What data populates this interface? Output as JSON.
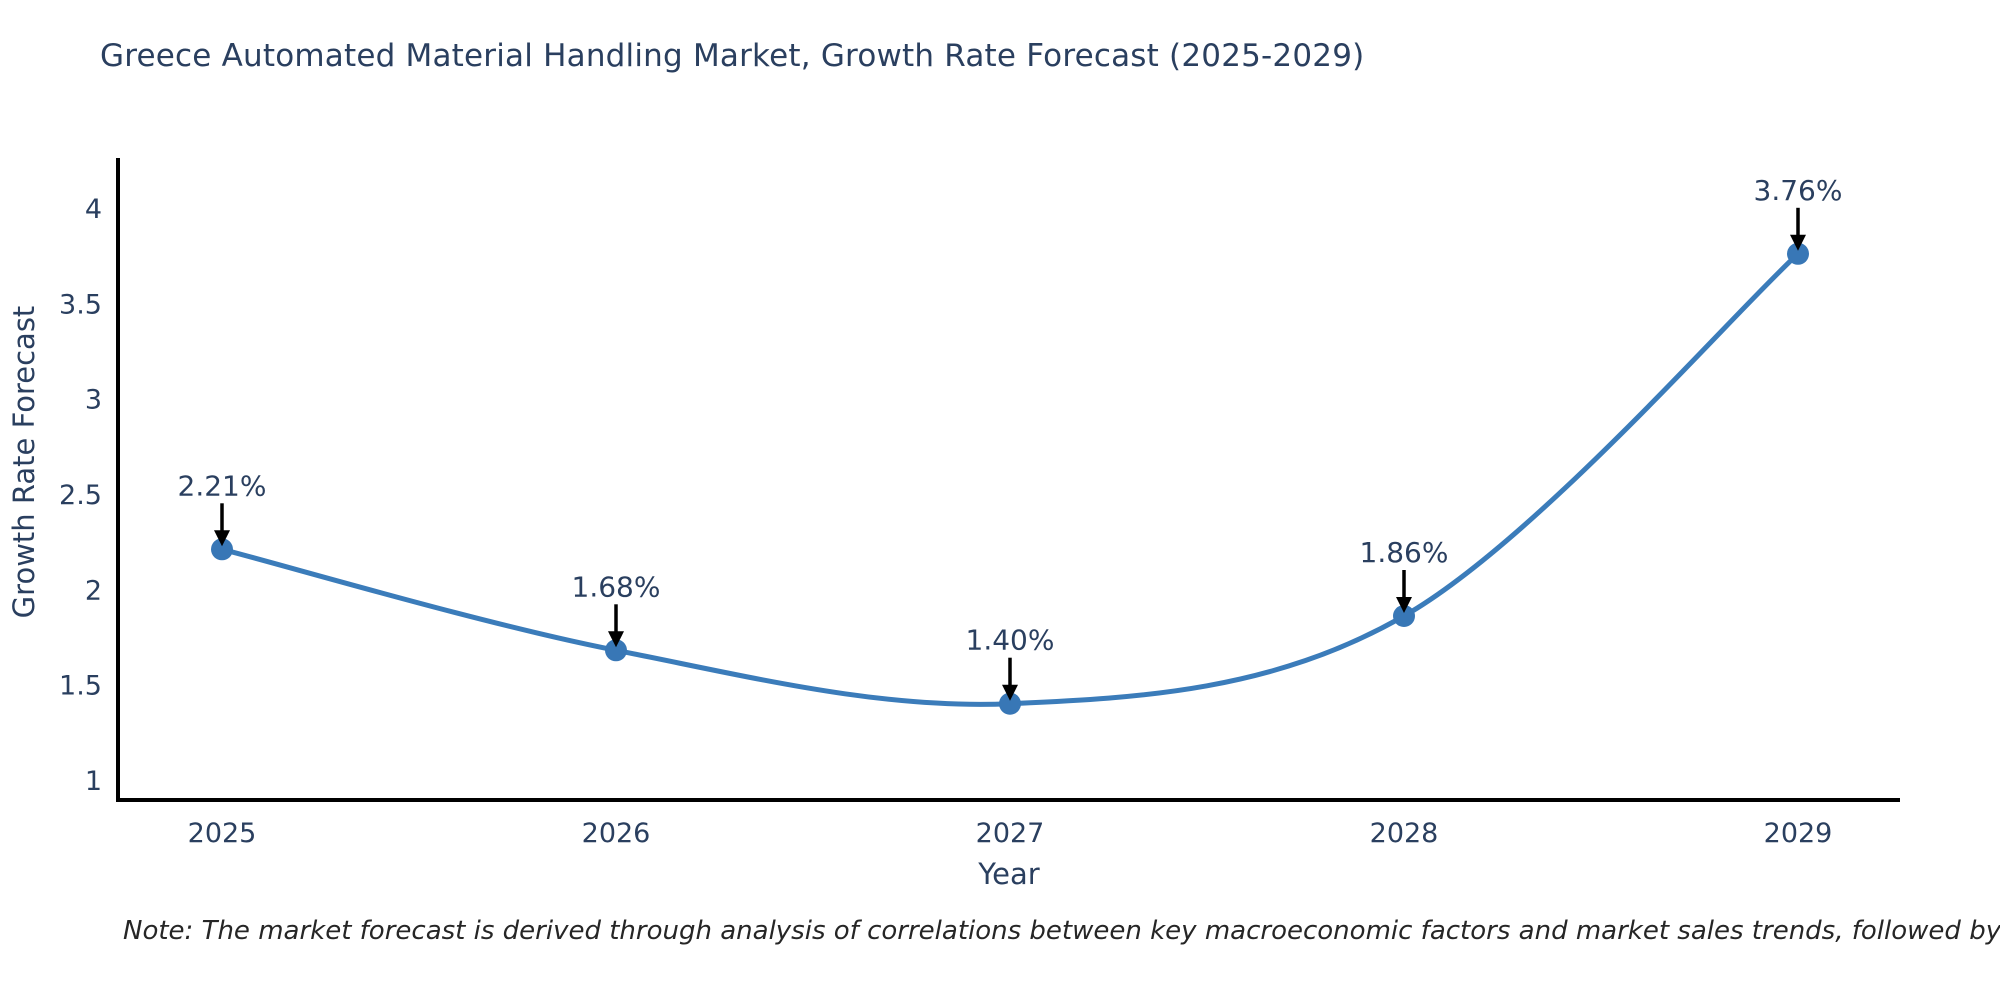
{
  "note": {
    "text": "Note: The market forecast is derived through analysis of correlations between key macroeconomic factors and market sales trends, followed by predictive modeling to project future sales"
  },
  "chart_data": {
    "type": "line",
    "title": "Greece Automated Material Handling Market, Growth Rate Forecast (2025-2029)",
    "x": [
      "2025",
      "2026",
      "2027",
      "2028",
      "2029"
    ],
    "values": [
      2.21,
      1.68,
      1.4,
      1.86,
      3.76
    ],
    "point_labels": [
      "2.21%",
      "1.68%",
      "1.40%",
      "1.86%",
      "3.76%"
    ],
    "xlabel": "Year",
    "ylabel": "Growth Rate Forecast",
    "ytick_labels": [
      "1",
      "1.5",
      "2",
      "2.5",
      "3",
      "3.5",
      "4"
    ],
    "ytick_values": [
      1,
      1.5,
      2,
      2.5,
      3,
      3.5,
      4
    ],
    "ylim": [
      0.9,
      4.25
    ],
    "grid": false,
    "legend": false,
    "line_color": "#3b7cba",
    "marker_color": "#3877b6",
    "axis_color": "#000000",
    "arrow_color": "#000000",
    "text_color": "#2a3f5f"
  }
}
